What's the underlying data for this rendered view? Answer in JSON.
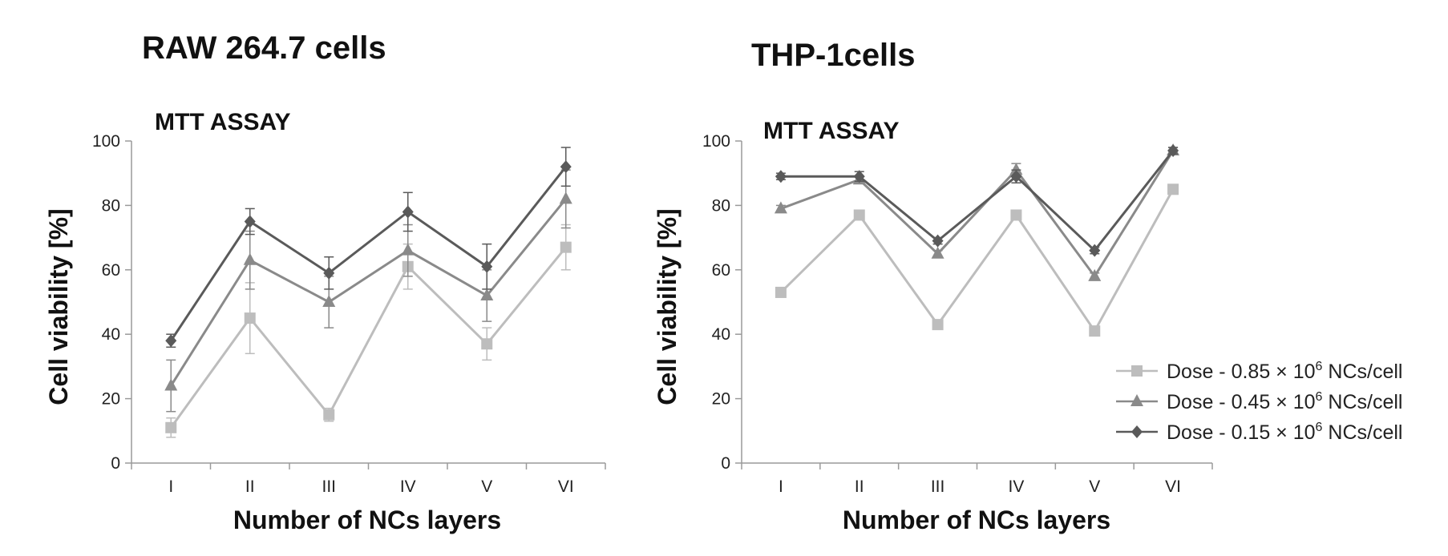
{
  "colors": {
    "dose_085": "#bdbdbd",
    "dose_045": "#8a8a8a",
    "dose_015": "#5a5a5a",
    "axis": "#9a9a9a"
  },
  "legend": {
    "items": [
      {
        "prefix": "Dose - 0.85 × 10",
        "sup": "6",
        "suffix": " NCs/cell",
        "color_key": "dose_085",
        "marker": "square"
      },
      {
        "prefix": "Dose - 0.45 × 10",
        "sup": "6",
        "suffix": " NCs/cell",
        "color_key": "dose_045",
        "marker": "triangle"
      },
      {
        "prefix": "Dose - 0.15 × 10",
        "sup": "6",
        "suffix": " NCs/cell",
        "color_key": "dose_015",
        "marker": "diamond"
      }
    ]
  },
  "chart_data": [
    {
      "type": "line",
      "title": "RAW 264.7 cells",
      "subtitle": "MTT ASSAY",
      "xlabel": "Number of NCs layers",
      "ylabel": "Cell viability [%]",
      "ylim": [
        0,
        100
      ],
      "yticks": [
        0,
        20,
        40,
        60,
        80,
        100
      ],
      "categories": [
        "I",
        "II",
        "III",
        "IV",
        "V",
        "VI"
      ],
      "series": [
        {
          "name": "Dose - 0.85 × 10^6 NCs/cell",
          "marker": "square",
          "color_key": "dose_085",
          "values": [
            11,
            45,
            15,
            61,
            37,
            67
          ],
          "errors": [
            3,
            11,
            2,
            7,
            5,
            7
          ]
        },
        {
          "name": "Dose - 0.45 × 10^6 NCs/cell",
          "marker": "triangle",
          "color_key": "dose_045",
          "values": [
            24,
            63,
            50,
            66,
            52,
            82
          ],
          "errors": [
            8,
            9,
            8,
            8,
            8,
            9
          ]
        },
        {
          "name": "Dose - 0.15 × 10^6 NCs/cell",
          "marker": "diamond",
          "color_key": "dose_015",
          "values": [
            38,
            75,
            59,
            78,
            61,
            92
          ],
          "errors": [
            2,
            4,
            5,
            6,
            7,
            6
          ]
        }
      ]
    },
    {
      "type": "line",
      "title": "THP-1cells",
      "subtitle": "MTT ASSAY",
      "xlabel": "Number of NCs layers",
      "ylabel": "Cell viability [%]",
      "ylim": [
        0,
        100
      ],
      "yticks": [
        0,
        20,
        40,
        60,
        80,
        100
      ],
      "categories": [
        "I",
        "II",
        "III",
        "IV",
        "V",
        "VI"
      ],
      "series": [
        {
          "name": "Dose - 0.85 × 10^6 NCs/cell",
          "marker": "square",
          "color_key": "dose_085",
          "values": [
            53,
            77,
            43,
            77,
            41,
            85
          ],
          "errors": [
            1.5,
            0.8,
            1,
            1,
            1.5,
            1
          ]
        },
        {
          "name": "Dose - 0.45 × 10^6 NCs/cell",
          "marker": "triangle",
          "color_key": "dose_045",
          "values": [
            79,
            88,
            65,
            91,
            58,
            97
          ],
          "errors": [
            1,
            1,
            1,
            2,
            1,
            1
          ]
        },
        {
          "name": "Dose - 0.15 × 10^6 NCs/cell",
          "marker": "diamond",
          "color_key": "dose_015",
          "values": [
            89,
            89,
            69,
            89,
            66,
            97
          ],
          "errors": [
            1,
            1.5,
            1,
            2,
            1,
            1
          ]
        }
      ]
    }
  ]
}
